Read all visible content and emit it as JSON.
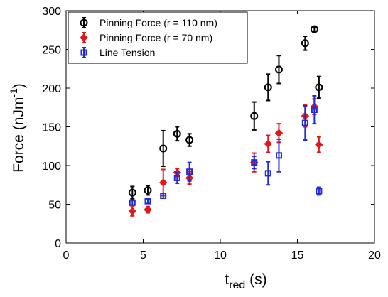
{
  "chart_data": {
    "type": "scatter",
    "xlabel_main": "t",
    "xlabel_sub": "red",
    "xlabel_unit": " (s)",
    "ylabel_main": "Force (nJm",
    "ylabel_sup": "-1",
    "ylabel_end": ")",
    "xlim": [
      0,
      20
    ],
    "ylim": [
      0,
      300
    ],
    "xticks": [
      0,
      5,
      10,
      15,
      20
    ],
    "yticks": [
      0,
      50,
      100,
      150,
      200,
      250,
      300
    ],
    "grid": false,
    "legend_position": "top-left",
    "series": [
      {
        "name": "Pinning Force (r = 110 nm)",
        "color": "#000000",
        "marker": "circle",
        "points": [
          {
            "x": 4.3,
            "y": 65,
            "err": 8
          },
          {
            "x": 5.3,
            "y": 68,
            "err": 6
          },
          {
            "x": 6.3,
            "y": 122,
            "err": 23
          },
          {
            "x": 7.2,
            "y": 141,
            "err": 9
          },
          {
            "x": 8.0,
            "y": 133,
            "err": 8
          },
          {
            "x": 12.2,
            "y": 164,
            "err": 18
          },
          {
            "x": 13.1,
            "y": 201,
            "err": 17
          },
          {
            "x": 13.8,
            "y": 224,
            "err": 18
          },
          {
            "x": 15.5,
            "y": 258,
            "err": 9
          },
          {
            "x": 16.1,
            "y": 276,
            "err": 3
          },
          {
            "x": 16.4,
            "y": 201,
            "err": 14
          }
        ]
      },
      {
        "name": "Pinning Force (r = 70 nm)",
        "color": "#e01818",
        "marker": "diamond",
        "points": [
          {
            "x": 4.3,
            "y": 41,
            "err": 6
          },
          {
            "x": 5.3,
            "y": 43,
            "err": 4
          },
          {
            "x": 6.3,
            "y": 78,
            "err": 17
          },
          {
            "x": 7.2,
            "y": 91,
            "err": 5
          },
          {
            "x": 8.0,
            "y": 84,
            "err": 8
          },
          {
            "x": 12.2,
            "y": 104,
            "err": 12
          },
          {
            "x": 13.1,
            "y": 128,
            "err": 11
          },
          {
            "x": 13.8,
            "y": 142,
            "err": 12
          },
          {
            "x": 15.5,
            "y": 164,
            "err": 14
          },
          {
            "x": 16.1,
            "y": 176,
            "err": 10
          },
          {
            "x": 16.4,
            "y": 127,
            "err": 10
          }
        ]
      },
      {
        "name": "Line Tension",
        "color": "#1f2bd6",
        "marker": "square",
        "points": [
          {
            "x": 4.3,
            "y": 52,
            "err": 3
          },
          {
            "x": 5.3,
            "y": 54,
            "err": 3
          },
          {
            "x": 6.3,
            "y": 61,
            "err": 3
          },
          {
            "x": 7.2,
            "y": 84,
            "err": 7
          },
          {
            "x": 8.0,
            "y": 92,
            "err": 12
          },
          {
            "x": 12.2,
            "y": 104,
            "err": 8
          },
          {
            "x": 13.1,
            "y": 90,
            "err": 15
          },
          {
            "x": 13.8,
            "y": 113,
            "err": 21
          },
          {
            "x": 15.5,
            "y": 155,
            "err": 22
          },
          {
            "x": 16.1,
            "y": 172,
            "err": 18
          },
          {
            "x": 16.4,
            "y": 67,
            "err": 5
          }
        ]
      }
    ]
  }
}
